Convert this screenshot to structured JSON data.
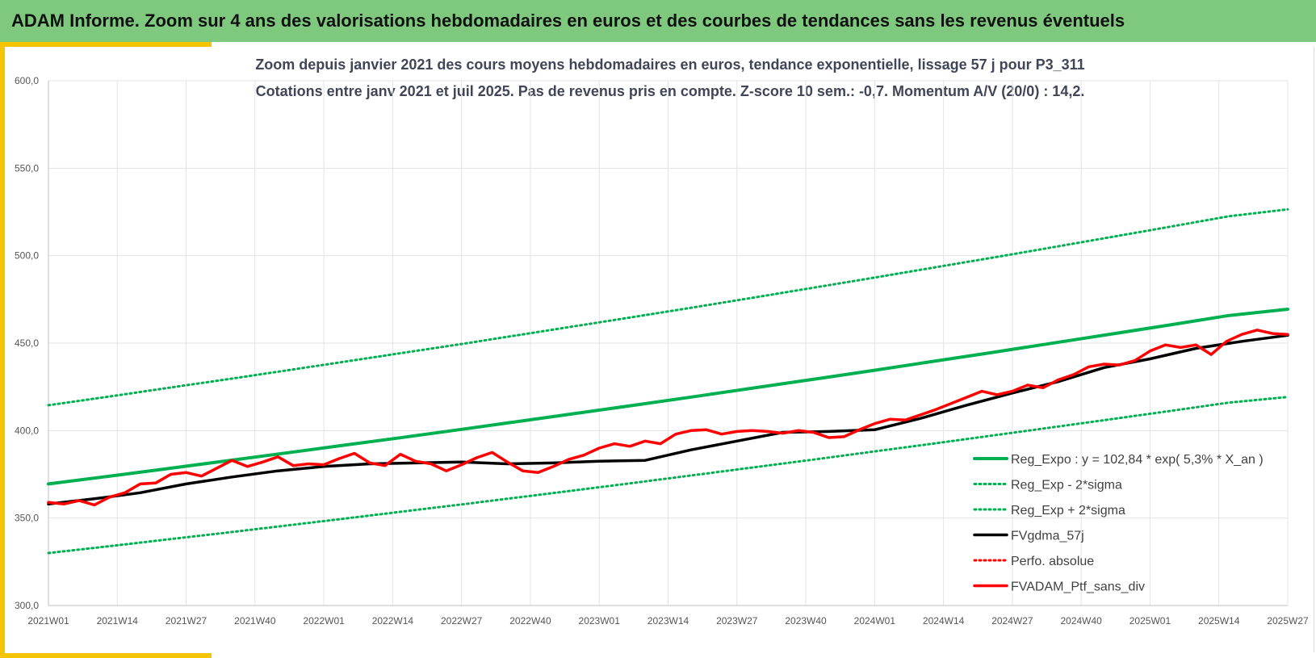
{
  "header": {
    "title": "ADAM Informe. Zoom sur 4 ans des valorisations hebdomadaires en euros et des courbes de tendances sans les revenus éventuels"
  },
  "chart_data": {
    "type": "line",
    "title": "Zoom depuis janvier 2021 des cours moyens hebdomadaires  en euros, tendance exponentielle, lissage 57 j pour P3_311",
    "subtitle": "Cotations entre janv 2021 et juil 2025. Pas de revenus pris en compte. Z-score 10 sem.: -0,7. Momentum A/V (20/0) : 14,2.",
    "xlabel": "",
    "ylabel": "",
    "ylim": [
      300,
      600
    ],
    "yticks": [
      "300,0",
      "350,0",
      "400,0",
      "450,0",
      "500,0",
      "550,0",
      "600,0"
    ],
    "xticks": [
      "2021W01",
      "2021W14",
      "2021W27",
      "2021W40",
      "2022W01",
      "2022W14",
      "2022W27",
      "2022W40",
      "2023W01",
      "2023W14",
      "2023W27",
      "2023W40",
      "2024W01",
      "2024W14",
      "2024W27",
      "2024W40",
      "2025W01",
      "2025W14",
      "2025W27"
    ],
    "grid": true,
    "legend_position": "bottom-right",
    "series": [
      {
        "name": "Reg_Expo : y = 102,84 * exp( 5,3% *  X_an )",
        "color": "#00b050",
        "style": "solid",
        "values": [
          369.5,
          373.8,
          378.2,
          382.6,
          387.1,
          391.6,
          396.1,
          400.7,
          405.4,
          410.1,
          414.9,
          419.7,
          424.6,
          429.5,
          434.5,
          439.6,
          444.7,
          449.9,
          455.1,
          460.4,
          465.8,
          469.4
        ]
      },
      {
        "name": "Reg_Exp - 2*sigma",
        "color": "#00b050",
        "style": "dotted",
        "values": [
          330.0,
          333.8,
          337.7,
          341.6,
          345.6,
          349.6,
          353.7,
          357.8,
          362.0,
          366.2,
          370.5,
          374.8,
          379.2,
          383.6,
          388.1,
          392.6,
          397.2,
          401.8,
          406.5,
          411.2,
          416.0,
          419.2
        ]
      },
      {
        "name": "Reg_Exp + 2*sigma",
        "color": "#00b050",
        "style": "dotted",
        "values": [
          414.5,
          419.3,
          424.3,
          429.2,
          434.2,
          439.3,
          444.4,
          449.5,
          454.8,
          460.1,
          465.4,
          470.8,
          476.3,
          481.9,
          487.5,
          493.2,
          498.9,
          504.7,
          510.6,
          516.5,
          522.5,
          526.5
        ]
      },
      {
        "name": "FVgdma_57j",
        "color": "#000000",
        "style": "solid",
        "values": [
          358.0,
          361.0,
          364.5,
          369.5,
          373.5,
          377.0,
          379.5,
          381.0,
          381.5,
          382.0,
          381.0,
          381.5,
          382.5,
          383.0,
          389.0,
          394.0,
          399.0,
          399.5,
          400.5,
          407.0,
          414.5,
          421.5,
          428.0,
          436.0,
          441.0,
          447.0,
          451.0,
          454.5
        ]
      },
      {
        "name": "Perfo. absolue",
        "color": "#ff0000",
        "style": "dotted",
        "values": []
      },
      {
        "name": "FVADAM_Ptf_sans_div",
        "color": "#ff0000",
        "style": "solid",
        "values": [
          359.0,
          358.0,
          360.0,
          357.5,
          362.0,
          364.5,
          369.5,
          370.0,
          375.0,
          376.0,
          374.0,
          378.5,
          383.0,
          379.5,
          382.0,
          385.0,
          380.0,
          381.0,
          380.5,
          384.0,
          387.0,
          381.5,
          380.0,
          386.5,
          382.5,
          381.0,
          377.0,
          380.5,
          384.5,
          387.5,
          382.0,
          377.0,
          376.0,
          379.5,
          383.5,
          386.0,
          390.0,
          392.5,
          391.0,
          394.0,
          392.5,
          398.0,
          400.0,
          400.5,
          398.0,
          399.5,
          400.0,
          399.5,
          398.5,
          400.0,
          399.0,
          396.0,
          396.5,
          400.5,
          404.0,
          406.5,
          406.0,
          409.0,
          412.0,
          415.5,
          419.0,
          422.5,
          420.5,
          422.5,
          426.0,
          424.5,
          429.0,
          432.0,
          436.5,
          438.0,
          437.5,
          440.0,
          445.5,
          449.0,
          447.5,
          449.0,
          443.5,
          451.0,
          455.0,
          457.5,
          455.5,
          455.0
        ]
      }
    ]
  }
}
